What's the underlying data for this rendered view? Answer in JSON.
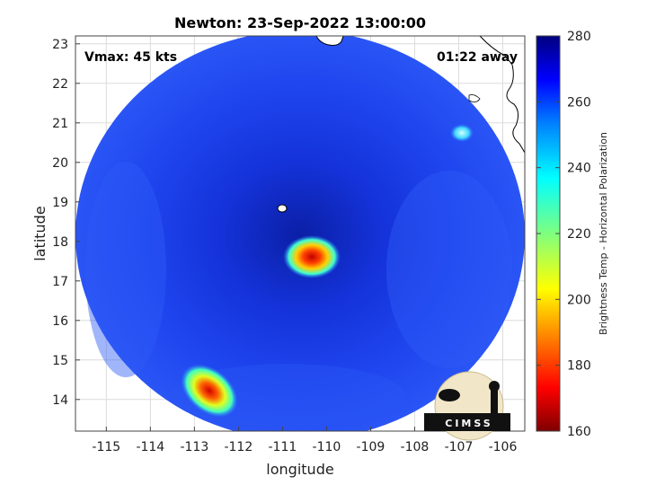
{
  "figure": {
    "title": "Newton: 23-Sep-2022 13:00:00",
    "annotation_left": "Vmax: 45 kts",
    "annotation_right": "01:22 away",
    "xlabel": "longitude",
    "ylabel": "latitude",
    "logo_text": "CIMSS"
  },
  "map": {
    "lon_range": [
      -115.7,
      -105.5
    ],
    "lat_range": [
      13.2,
      23.2
    ],
    "xticks": [
      -115,
      -114,
      -113,
      -112,
      -111,
      -110,
      -109,
      -108,
      -107,
      -106
    ],
    "yticks": [
      14,
      15,
      16,
      17,
      18,
      19,
      20,
      21,
      22,
      23
    ],
    "swath_center": {
      "lon": -110.6,
      "lat": 18.1
    },
    "features": [
      {
        "name": "cold-core",
        "lon": -110.33,
        "lat": 17.57,
        "tb": 170
      },
      {
        "name": "convection-southwest",
        "lon": -112.8,
        "lat": 14.3,
        "tb": 185
      },
      {
        "name": "convection-northeast",
        "lon": -106.8,
        "lat": 20.7,
        "tb": 248
      }
    ]
  },
  "colorbar": {
    "label": "Brightness Temp - Horizontal Polarization",
    "range": [
      160,
      280
    ],
    "ticks": [
      160,
      180,
      200,
      220,
      240,
      260,
      280
    ],
    "colormap": "jet",
    "colors": [
      "#7f0000",
      "#ff0000",
      "#ff7f00",
      "#ffff00",
      "#7fff7f",
      "#00ffff",
      "#007fff",
      "#0000ff",
      "#00007f"
    ]
  },
  "colors": {
    "swath_base": "#1e3ff0",
    "swath_dark": "#0a1fa8"
  }
}
